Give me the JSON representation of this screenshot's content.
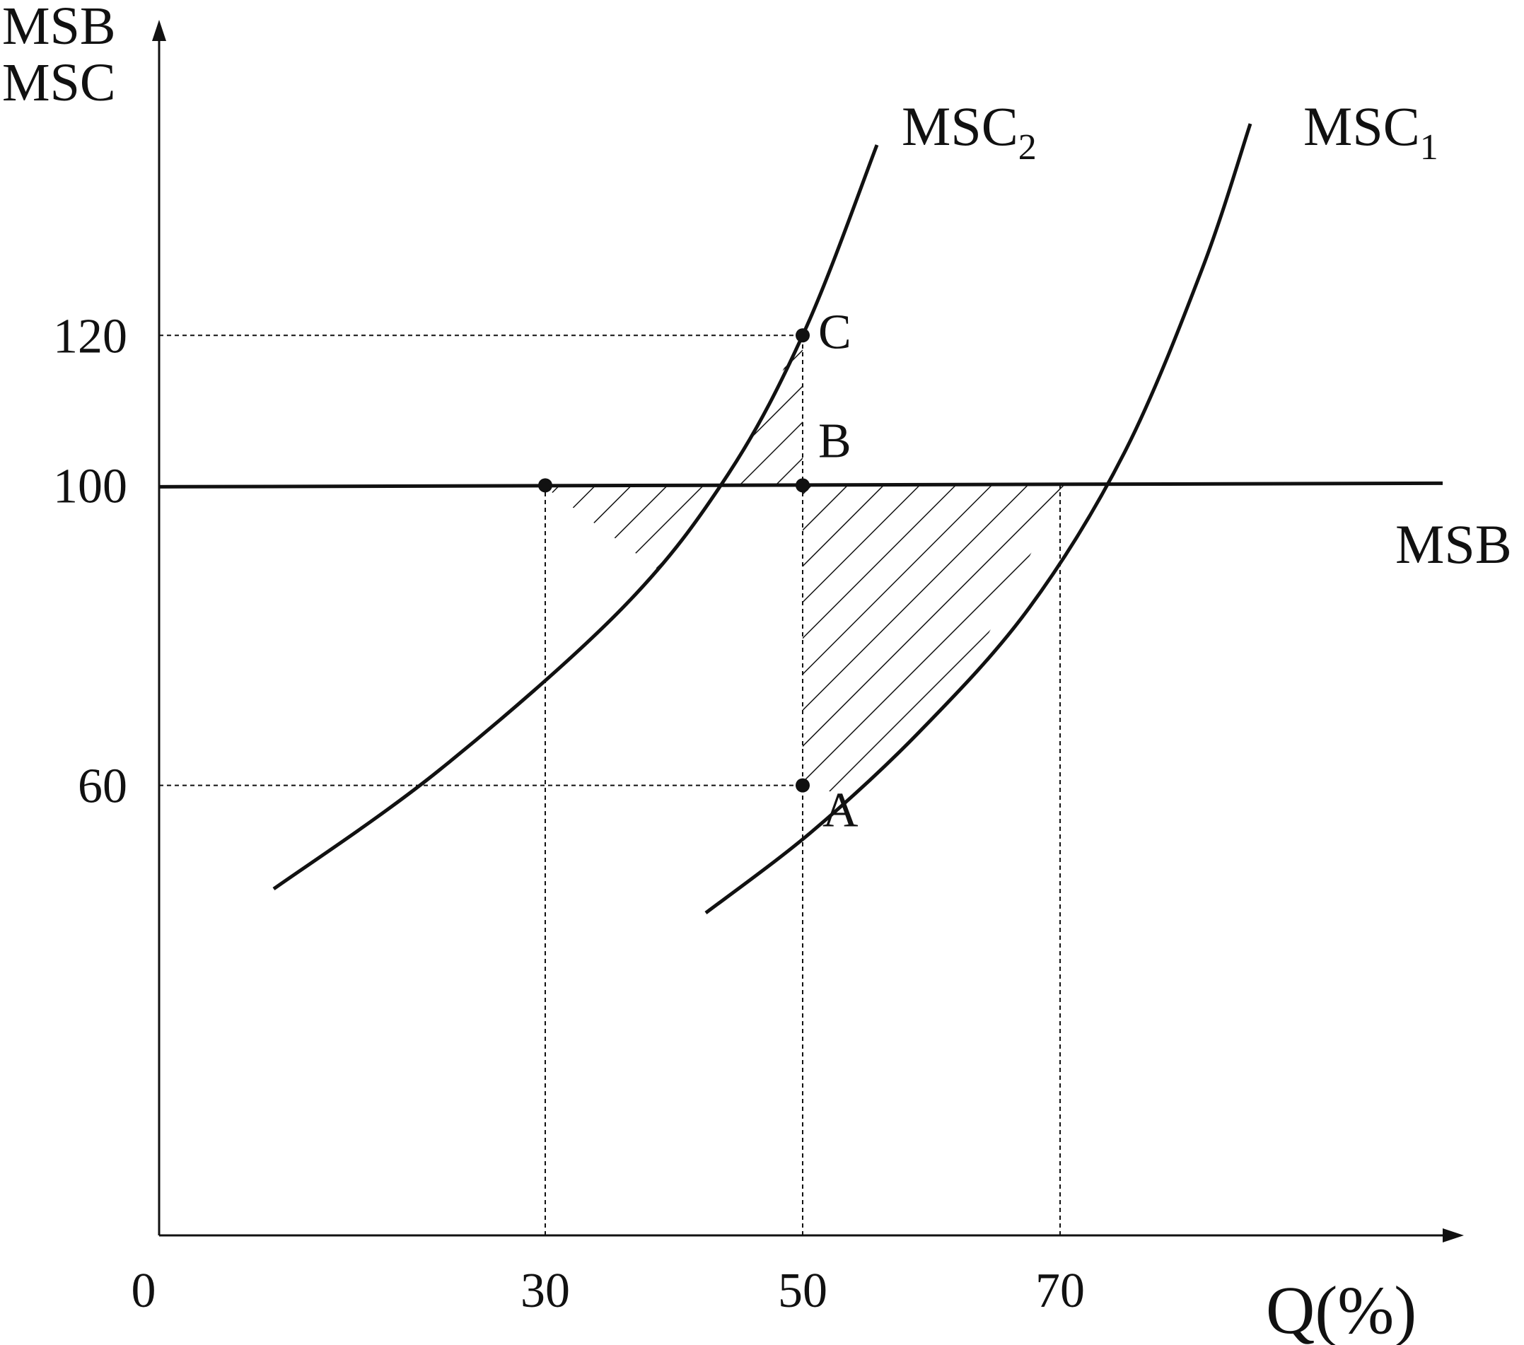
{
  "chart_data": {
    "type": "line",
    "title": "",
    "ylabel": [
      "MSB",
      "MSC"
    ],
    "xlabel": "Q(%)",
    "origin_label": "0",
    "xlim": [
      0,
      100
    ],
    "ylim": [
      0,
      160
    ],
    "x_ticks": [
      {
        "value": 30,
        "label": "30"
      },
      {
        "value": 50,
        "label": "50"
      },
      {
        "value": 70,
        "label": "70"
      }
    ],
    "y_ticks": [
      {
        "value": 60,
        "label": "60"
      },
      {
        "value": 100,
        "label": "100"
      },
      {
        "value": 120,
        "label": "120"
      }
    ],
    "series": [
      {
        "name": "MSB",
        "label_base": "MSB",
        "label_sub": "",
        "x": [
          0,
          100
        ],
        "y": [
          100,
          100
        ]
      },
      {
        "name": "MSC₁",
        "label_base": "MSC",
        "label_sub": "1",
        "x": [
          41,
          50,
          61,
          70,
          79,
          83
        ],
        "y": [
          48,
          60,
          80,
          100,
          130,
          157
        ]
      },
      {
        "name": "MSC₂",
        "label_base": "MSC",
        "label_sub": "2",
        "x": [
          7.5,
          20,
          30,
          40,
          50,
          55,
          56.5
        ],
        "y": [
          50,
          70,
          100,
          100,
          120,
          140,
          147
        ]
      }
    ],
    "points": [
      {
        "label": "A",
        "x": 50,
        "y": 60
      },
      {
        "label": "B",
        "x": 50,
        "y": 100
      },
      {
        "label": "C",
        "x": 50,
        "y": 120
      },
      {
        "label": "",
        "x": 30,
        "y": 100
      }
    ],
    "shaded_regions": [
      {
        "between": "MSC₂ and Q=50",
        "y_from": 100,
        "y_to": 120
      },
      {
        "between": "MSB, Q=50 and MSC₁",
        "y_from": 60,
        "y_to": 100
      }
    ],
    "reference_lines": [
      {
        "orientation": "horizontal",
        "y": 120,
        "x_to": 50
      },
      {
        "orientation": "horizontal",
        "y": 60,
        "x_to": 50
      },
      {
        "orientation": "vertical",
        "x": 30,
        "y_to": 100
      },
      {
        "orientation": "vertical",
        "x": 50,
        "y_to": 120
      },
      {
        "orientation": "vertical",
        "x": 70,
        "y_to": 100
      }
    ],
    "grid": false,
    "colors": {
      "ink": "#111111",
      "background": "#ffffff"
    }
  }
}
